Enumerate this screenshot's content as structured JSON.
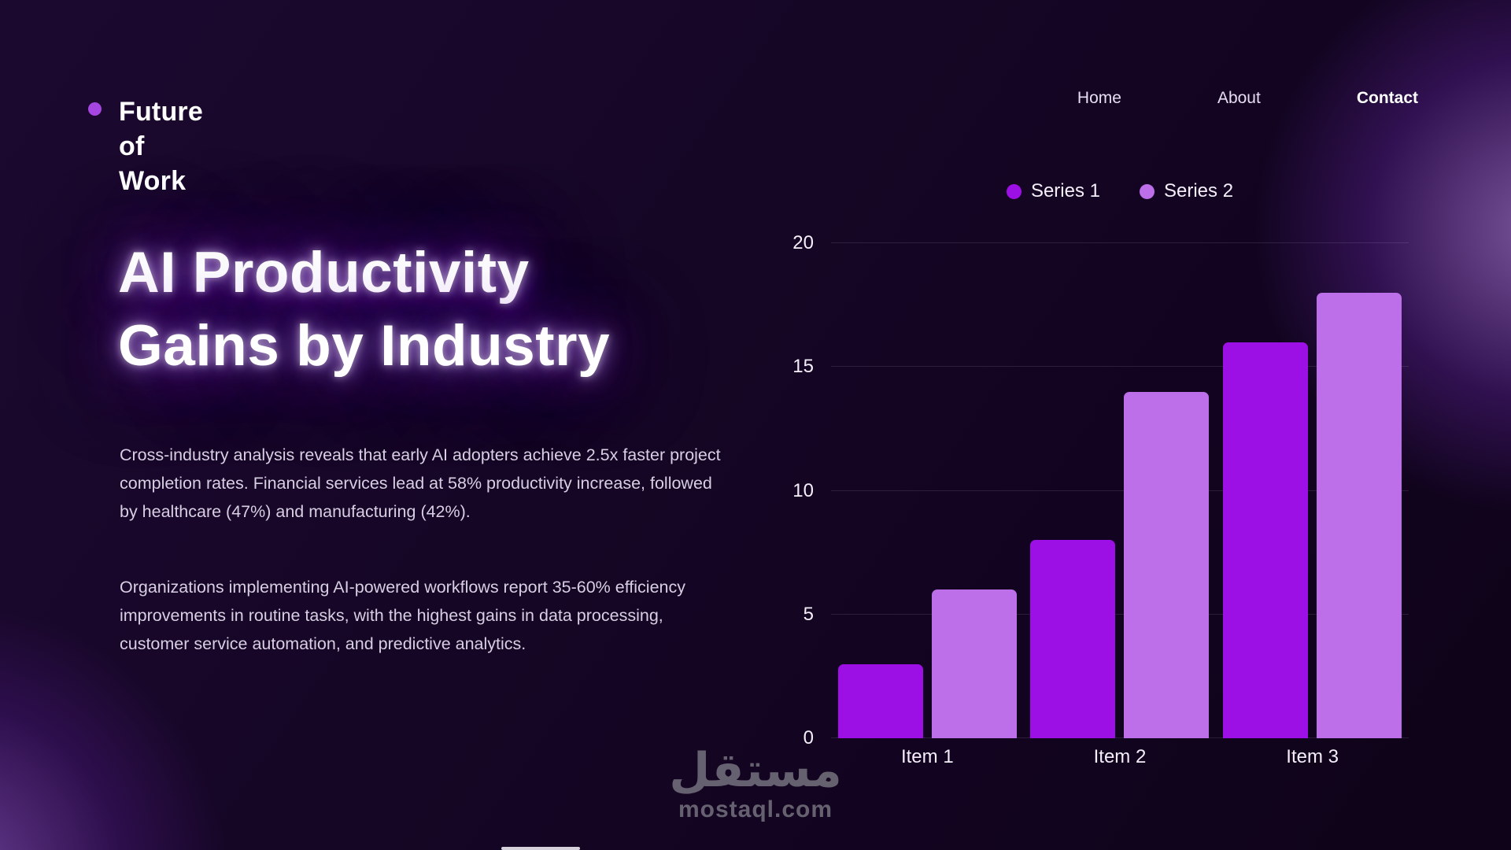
{
  "brand": {
    "lines": [
      "Future",
      "of",
      "Work"
    ],
    "dot_color": "#a646e0"
  },
  "nav": {
    "items": [
      {
        "label": "Home",
        "active": false
      },
      {
        "label": "About",
        "active": false
      },
      {
        "label": "Contact",
        "active": true
      }
    ]
  },
  "hero": {
    "title_lines": [
      "AI Productivity",
      "Gains by Industry"
    ],
    "paragraphs": [
      "Cross-industry analysis reveals that early AI adopters achieve 2.5x faster project completion rates. Financial services lead at 58% productivity increase, followed by healthcare (47%) and manufacturing (42%).",
      "Organizations implementing AI-powered workflows report 35-60% efficiency improvements in routine tasks, with the highest gains in data processing, customer service automation, and predictive analytics."
    ]
  },
  "chart_data": {
    "type": "bar",
    "categories": [
      "Item 1",
      "Item 2",
      "Item 3"
    ],
    "series": [
      {
        "name": "Series 1",
        "color": "#9c10e6",
        "values": [
          3,
          8,
          16
        ]
      },
      {
        "name": "Series 2",
        "color": "#bd6fea",
        "values": [
          6,
          14,
          18
        ]
      }
    ],
    "title": "",
    "xlabel": "",
    "ylabel": "",
    "ylim": [
      0,
      20
    ],
    "yticks": [
      0,
      5,
      10,
      15,
      20
    ],
    "grid": true,
    "legend_position": "top"
  },
  "watermark": {
    "arabic": "مستقل",
    "domain": "mostaql.com"
  },
  "colors": {
    "background_dark": "#120420",
    "glow_purple": "#a855f7",
    "text_body": "#d7cfe3",
    "text_white": "#ffffff"
  }
}
